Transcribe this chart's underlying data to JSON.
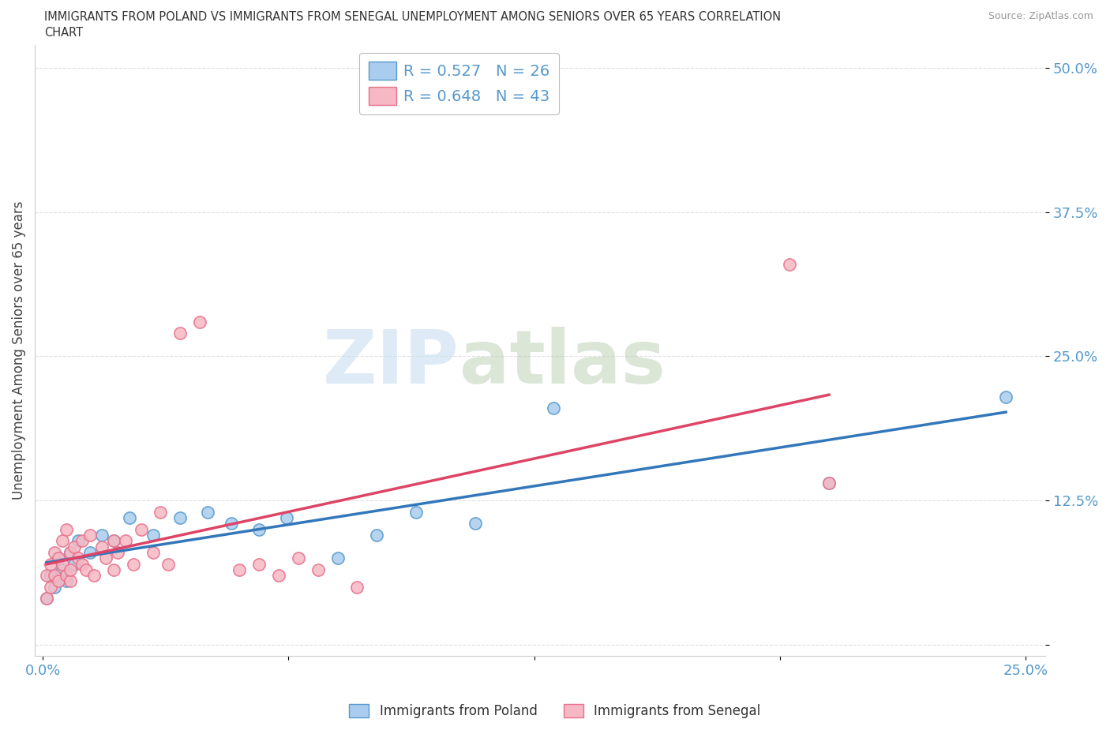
{
  "title_line1": "IMMIGRANTS FROM POLAND VS IMMIGRANTS FROM SENEGAL UNEMPLOYMENT AMONG SENIORS OVER 65 YEARS CORRELATION",
  "title_line2": "CHART",
  "source": "Source: ZipAtlas.com",
  "ylabel": "Unemployment Among Seniors over 65 years",
  "watermark_zip": "ZIP",
  "watermark_atlas": "atlas",
  "xlim": [
    -0.002,
    0.255
  ],
  "ylim": [
    -0.01,
    0.52
  ],
  "poland_R": 0.527,
  "poland_N": 26,
  "senegal_R": 0.648,
  "senegal_N": 43,
  "poland_color": "#aaccee",
  "senegal_color": "#f5b8c4",
  "poland_edge_color": "#5599cc",
  "senegal_edge_color": "#e8708a",
  "poland_line_color": "#3377bb",
  "senegal_line_color": "#dd4466",
  "gray_dash_color": "#cccccc",
  "background_color": "#ffffff",
  "grid_color": "#e0e0e0",
  "tick_color": "#5599cc",
  "poland_x": [
    0.001,
    0.002,
    0.003,
    0.004,
    0.005,
    0.006,
    0.007,
    0.008,
    0.009,
    0.012,
    0.015,
    0.018,
    0.022,
    0.028,
    0.035,
    0.042,
    0.048,
    0.055,
    0.062,
    0.075,
    0.085,
    0.095,
    0.11,
    0.13,
    0.2,
    0.245
  ],
  "poland_y": [
    0.04,
    0.06,
    0.05,
    0.075,
    0.065,
    0.055,
    0.08,
    0.07,
    0.09,
    0.08,
    0.095,
    0.09,
    0.11,
    0.095,
    0.11,
    0.115,
    0.105,
    0.1,
    0.11,
    0.075,
    0.095,
    0.115,
    0.105,
    0.205,
    0.14,
    0.215
  ],
  "senegal_x": [
    0.001,
    0.001,
    0.002,
    0.002,
    0.003,
    0.003,
    0.004,
    0.004,
    0.005,
    0.005,
    0.006,
    0.006,
    0.007,
    0.007,
    0.007,
    0.008,
    0.009,
    0.01,
    0.01,
    0.011,
    0.012,
    0.013,
    0.015,
    0.016,
    0.018,
    0.018,
    0.019,
    0.021,
    0.023,
    0.025,
    0.028,
    0.03,
    0.032,
    0.035,
    0.04,
    0.05,
    0.055,
    0.06,
    0.065,
    0.07,
    0.08,
    0.19,
    0.2
  ],
  "senegal_y": [
    0.04,
    0.06,
    0.05,
    0.07,
    0.06,
    0.08,
    0.055,
    0.075,
    0.07,
    0.09,
    0.06,
    0.1,
    0.055,
    0.08,
    0.065,
    0.085,
    0.075,
    0.07,
    0.09,
    0.065,
    0.095,
    0.06,
    0.085,
    0.075,
    0.09,
    0.065,
    0.08,
    0.09,
    0.07,
    0.1,
    0.08,
    0.115,
    0.07,
    0.27,
    0.28,
    0.065,
    0.07,
    0.06,
    0.075,
    0.065,
    0.05,
    0.33,
    0.14
  ],
  "ytick_positions": [
    0.0,
    0.125,
    0.25,
    0.375,
    0.5
  ],
  "xtick_positions": [
    0.0,
    0.0625,
    0.125,
    0.1875,
    0.25
  ]
}
